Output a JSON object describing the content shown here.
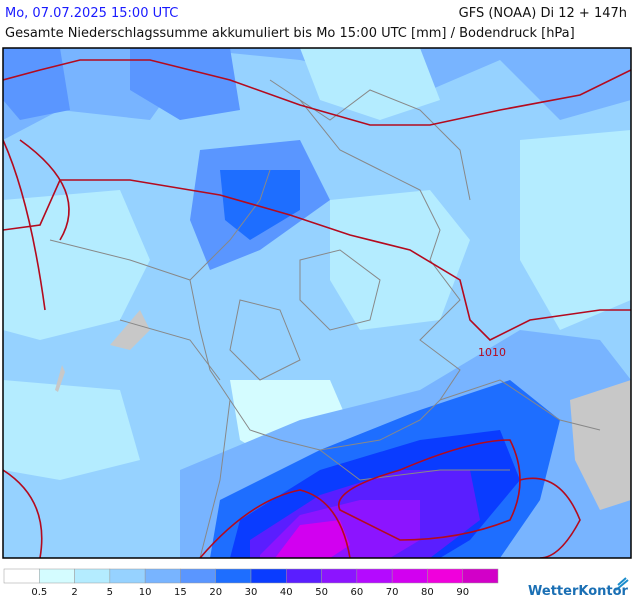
{
  "header": {
    "date": "Mo, 07.07.2025 15:00 UTC",
    "model": "GFS (NOAA) Di 12 + 147h",
    "subtitle": "Gesamte Niederschlagssumme akkumuliert bis Mo 15:00 UTC [mm] / Bodendruck [hPa]"
  },
  "map": {
    "isobar_label": "1010"
  },
  "legend": {
    "thresholds": [
      0.5,
      2,
      5,
      10,
      15,
      20,
      30,
      40,
      50,
      60,
      70,
      80,
      90
    ],
    "colors": [
      "#ffffff",
      "#d4fcff",
      "#b4ecff",
      "#96d2ff",
      "#78b4ff",
      "#5a96ff",
      "#1e6eff",
      "#0a3cff",
      "#5a1eff",
      "#8c14ff",
      "#b40aff",
      "#d200f0",
      "#f000dc",
      "#d200c8"
    ]
  },
  "brand": "WetterKontor"
}
